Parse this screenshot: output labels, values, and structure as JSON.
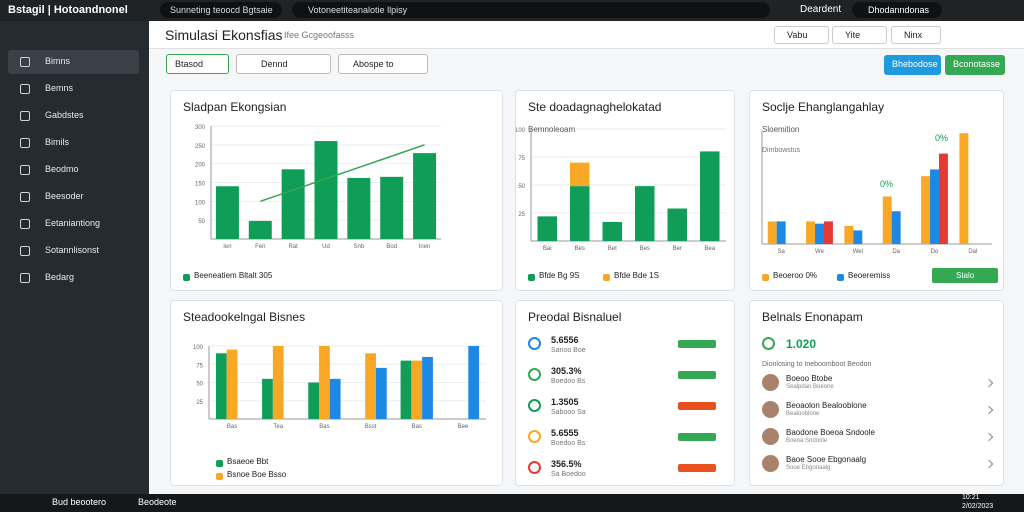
{
  "topbar": {
    "app": "Bstagil | Hotoandnonel",
    "tabs": [
      "Sunneting teoocd Bgtsaie",
      "Votoneetiteanalotie llpisy"
    ],
    "user_label": "Deardent",
    "user_name": "Dhodanndonas"
  },
  "sidebar": {
    "items": [
      "Bimns",
      "Bemns",
      "Gabdstes",
      "Bimils",
      "Beodmo",
      "Beesoder",
      "Eetaniantiong",
      "Sotannlisonst",
      "Bedarg"
    ]
  },
  "header": {
    "title": "Simulasi Ekonsfias",
    "subtitle": "Ifee Gcgeoofasss",
    "actions": [
      "Vabu",
      "Yite",
      "Ninx"
    ],
    "filters": [
      "Btasod",
      "Dennd"
    ],
    "search": "Abospe to",
    "buttons": [
      "Bhebodose",
      "Bconotasse"
    ]
  },
  "cards": [
    {
      "title": "Sladpan Ekongsian",
      "chart": {
        "type": "bar",
        "categories": [
          "Ien",
          "Fen",
          "Rat",
          "Ud",
          "Snb",
          "Bod",
          "Inen"
        ],
        "ylim": [
          0,
          300
        ],
        "yticks": [
          50,
          100,
          150,
          200,
          250,
          300
        ],
        "series": [
          {
            "color": "#0f9d58",
            "values": [
              140,
              48,
              185,
              260,
              162,
              165,
              228
            ]
          }
        ],
        "line": {
          "color": "#34a853",
          "values": [
            null,
            100,
            130,
            160,
            190,
            220,
            250
          ]
        }
      },
      "legend": [
        "Beeneatiem Bltalt 305"
      ]
    },
    {
      "title": "Ste doadagnaghelokatad",
      "subtitle": "Bemnoleoam",
      "chart": {
        "type": "stacked",
        "categories": [
          "Bai",
          "Bes",
          "Bet",
          "Bes",
          "Ber",
          "Bea"
        ],
        "ylim": [
          0,
          100
        ],
        "yticks": [
          25,
          50,
          75,
          100
        ],
        "series": [
          {
            "color": "#0f9d58",
            "values": [
              22,
              49,
              17,
              49,
              29,
              80
            ]
          },
          {
            "color": "#f9a825",
            "values": [
              0,
              21,
              0,
              0,
              0,
              0
            ]
          }
        ]
      },
      "legend": [
        "Bfde Bg 9S",
        "Bfde Bde 1S"
      ]
    },
    {
      "title": "Soclje Ehanglangahlay",
      "subtitle": "Sloemition",
      "note": "Dimbowstus",
      "annotations": [
        "0%",
        "0%"
      ],
      "chart": {
        "type": "bar",
        "categories": [
          "Sa",
          "We",
          "Wel",
          "Da",
          "Do",
          "Dal"
        ],
        "ylim": [
          0,
          100
        ],
        "series": [
          {
            "color": "#f9a825",
            "values": [
              20,
              20,
              16,
              42,
              60,
              98
            ]
          },
          {
            "color": "#1e88e5",
            "values": [
              20,
              18,
              12,
              29,
              66,
              0
            ]
          },
          {
            "color": "#e53935",
            "values": [
              0,
              20,
              0,
              0,
              80,
              0
            ]
          }
        ]
      },
      "legend": [
        "Beoeroo 0%",
        "Beoeremiss"
      ],
      "button": "Stalo"
    },
    {
      "title": "Steadookelngal Bisnes",
      "chart": {
        "type": "bar",
        "categories": [
          "Bas",
          "Tea",
          "Bas",
          "Bsst",
          "Bas",
          "Bee"
        ],
        "ylim": [
          0,
          100
        ],
        "yticks": [
          25,
          50,
          75,
          100
        ],
        "series": [
          {
            "color": "#0f9d58",
            "values": [
              90,
              55,
              50,
              0,
              80,
              0
            ]
          },
          {
            "color": "#f9a825",
            "values": [
              95,
              100,
              100,
              90,
              80,
              0
            ]
          },
          {
            "color": "#1e88e5",
            "values": [
              0,
              0,
              55,
              70,
              85,
              100
            ]
          }
        ]
      },
      "legend": [
        "Bsaeoe Bbt",
        "Bsnoe Boe Bsso"
      ]
    },
    {
      "title": "Preodal Bisnaluel",
      "items": [
        {
          "value": "5.6556",
          "label": "Sanoo Boe",
          "color": "#1e88e5",
          "pill": "#34a853"
        },
        {
          "value": "305.3%",
          "label": "Boedoo Bs",
          "color": "#34a853",
          "pill": "#34a853"
        },
        {
          "value": "1.3505",
          "label": "Sabooo Sa",
          "color": "#0f9d58",
          "pill": "#e8501e"
        },
        {
          "value": "5.6555",
          "label": "Boedoo Bs",
          "color": "#f9a825",
          "pill": "#34a853"
        },
        {
          "value": "356.5%",
          "label": "Sa Boedoo",
          "color": "#e53935",
          "pill": "#e8501e"
        }
      ]
    },
    {
      "title": "Belnals Enonapam",
      "value": "1.020",
      "subtitle": "Dionlosing to Ineboomboot Beodon",
      "people": [
        {
          "name": "Boeoo Btobe",
          "role": "Sealpdan Boeone"
        },
        {
          "name": "Beoaolon Bealooblone",
          "role": "Bealooblone"
        },
        {
          "name": "Baodone Boeoa Sndoole",
          "role": "Boeoa Sndoole"
        },
        {
          "name": "Baoe Sooe Ebgonaalg",
          "role": "Sooe Ebgonaalg"
        }
      ]
    }
  ],
  "taskbar": {
    "items": [
      "Bud beootero",
      "Beodeote"
    ],
    "clock": [
      "10:21",
      "2/02/2023"
    ]
  }
}
